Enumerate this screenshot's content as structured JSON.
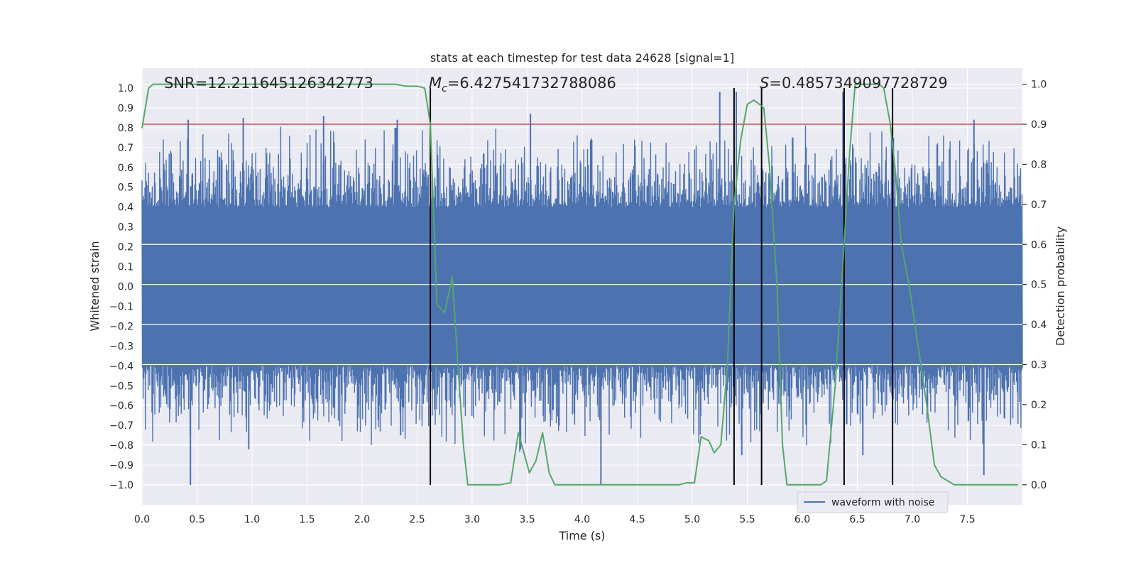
{
  "chart_data": {
    "type": "line",
    "title": "stats at each timestep for test data 24628 [signal=1]",
    "xlabel": "Time (s)",
    "ylabel": "Whitened strain",
    "y2label": "Detection probability",
    "xlim": [
      0.0,
      8.0
    ],
    "ylim": [
      -1.1,
      1.1
    ],
    "y2lim": [
      -0.05,
      1.04
    ],
    "xticks": [
      "0.0",
      "0.5",
      "1.0",
      "1.5",
      "2.0",
      "2.5",
      "3.0",
      "3.5",
      "4.0",
      "4.5",
      "5.0",
      "5.5",
      "6.0",
      "6.5",
      "7.0",
      "7.5"
    ],
    "xtick_values": [
      0.0,
      0.5,
      1.0,
      1.5,
      2.0,
      2.5,
      3.0,
      3.5,
      4.0,
      4.5,
      5.0,
      5.5,
      6.0,
      6.5,
      7.0,
      7.5
    ],
    "yticks": [
      "−1.0",
      "−0.9",
      "−0.8",
      "−0.7",
      "−0.6",
      "−0.5",
      "−0.4",
      "−0.3",
      "−0.2",
      "−0.1",
      "0.0",
      "0.1",
      "0.2",
      "0.3",
      "0.4",
      "0.5",
      "0.6",
      "0.7",
      "0.8",
      "0.9",
      "1.0"
    ],
    "ytick_values": [
      -1.0,
      -0.9,
      -0.8,
      -0.7,
      -0.6,
      -0.5,
      -0.4,
      -0.3,
      -0.2,
      -0.1,
      0.0,
      0.1,
      0.2,
      0.3,
      0.4,
      0.5,
      0.6,
      0.7,
      0.8,
      0.9,
      1.0
    ],
    "y2ticks": [
      "0.0",
      "0.1",
      "0.2",
      "0.3",
      "0.4",
      "0.5",
      "0.6",
      "0.7",
      "0.8",
      "0.9",
      "1.0"
    ],
    "y2tick_values": [
      0.0,
      0.1,
      0.2,
      0.3,
      0.4,
      0.5,
      0.6,
      0.7,
      0.8,
      0.9,
      1.0
    ],
    "grid": true,
    "legend": {
      "placement": "lower-right",
      "entries": [
        "waveform with noise"
      ]
    },
    "annotations": {
      "snr": "SNR=12.211645126342773",
      "mc_symbol": "M",
      "mc_sub": "c",
      "mc_value": "=6.427541732788086",
      "s_symbol": "S",
      "s_value": "=0.4857349097728729"
    },
    "threshold": {
      "axis": "right",
      "value": 0.9
    },
    "vlines": [
      2.62,
      5.38,
      5.63,
      6.38,
      6.82
    ],
    "vline_range": [
      -1.0,
      1.0
    ],
    "waveform": {
      "name": "waveform with noise",
      "t_range": [
        0.0,
        8.0
      ],
      "core_abs": 0.4,
      "typical_max_abs": 0.8,
      "peaks": [
        [
          0.42,
          0.84
        ],
        [
          0.44,
          -1.0
        ],
        [
          0.92,
          0.85
        ],
        [
          0.97,
          -0.82
        ],
        [
          1.65,
          0.86
        ],
        [
          2.21,
          -0.62
        ],
        [
          2.3,
          0.8
        ],
        [
          2.32,
          0.84
        ],
        [
          2.35,
          -0.75
        ],
        [
          2.31,
          0.8
        ],
        [
          3.44,
          -0.82
        ],
        [
          3.53,
          0.87
        ],
        [
          4.17,
          -1.0
        ],
        [
          5.25,
          0.98
        ],
        [
          5.4,
          0.98
        ],
        [
          5.45,
          -0.85
        ],
        [
          6.37,
          0.98
        ],
        [
          6.55,
          -0.85
        ],
        [
          7.56,
          0.84
        ],
        [
          7.65,
          -0.95
        ]
      ]
    },
    "probability": {
      "name": "Detection probability",
      "x": [
        0.0,
        0.06,
        0.1,
        0.3,
        0.6,
        1.0,
        1.5,
        2.0,
        2.2,
        2.3,
        2.4,
        2.5,
        2.57,
        2.62,
        2.68,
        2.75,
        2.82,
        2.87,
        2.92,
        2.96,
        3.02,
        3.15,
        3.25,
        3.35,
        3.42,
        3.47,
        3.52,
        3.58,
        3.64,
        3.7,
        3.75,
        3.83,
        3.92,
        4.05,
        4.2,
        4.35,
        4.5,
        4.7,
        4.88,
        4.95,
        5.02,
        5.08,
        5.15,
        5.2,
        5.26,
        5.32,
        5.38,
        5.44,
        5.5,
        5.56,
        5.61,
        5.65,
        5.7,
        5.77,
        5.82,
        5.86,
        5.92,
        6.0,
        6.07,
        6.12,
        6.17,
        6.22,
        6.3,
        6.38,
        6.43,
        6.48,
        6.55,
        6.7,
        6.74,
        6.8,
        6.85,
        6.9,
        6.97,
        7.05,
        7.13,
        7.2,
        7.26,
        7.32,
        7.38,
        7.46,
        7.6,
        7.8,
        7.96
      ],
      "y": [
        0.89,
        0.99,
        1.0,
        1.0,
        1.0,
        1.0,
        1.0,
        1.0,
        1.0,
        1.0,
        0.995,
        0.995,
        0.99,
        0.9,
        0.45,
        0.43,
        0.52,
        0.3,
        0.1,
        0.0,
        0.0,
        0.0,
        0.0,
        0.005,
        0.13,
        0.08,
        0.03,
        0.06,
        0.13,
        0.03,
        0.0,
        0.0,
        0.0,
        0.0,
        0.0,
        0.0,
        0.0,
        0.0,
        0.0,
        0.005,
        0.005,
        0.12,
        0.11,
        0.08,
        0.1,
        0.3,
        0.7,
        0.86,
        0.95,
        0.96,
        0.95,
        0.94,
        0.8,
        0.5,
        0.1,
        0.0,
        0.0,
        0.0,
        0.0,
        0.0,
        0.0,
        0.01,
        0.25,
        0.6,
        0.83,
        1.0,
        1.0,
        1.0,
        0.99,
        0.9,
        0.77,
        0.6,
        0.5,
        0.35,
        0.2,
        0.05,
        0.02,
        0.01,
        0.0,
        0.0,
        0.0,
        0.0,
        0.0
      ]
    },
    "colors": {
      "plot_background": "#eaeaf2",
      "grid": "#ffffff",
      "waveform": "#4c72b0",
      "probability": "#55a868",
      "threshold": "#c44e52",
      "vlines": "#000000",
      "text": "#262626"
    }
  }
}
